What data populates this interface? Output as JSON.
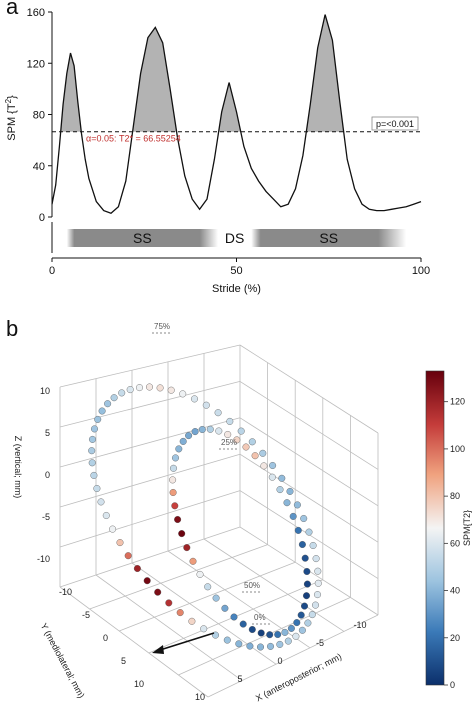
{
  "figure": {
    "panel_a_label": "a",
    "panel_b_label": "b"
  },
  "chart_data": [
    {
      "type": "line",
      "ylabel_main": "SPM {T",
      "ylabel_sup": "2",
      "ylabel_end": "}",
      "xlabel": "Stride (%)",
      "xlim": [
        0,
        100
      ],
      "ylim": [
        0,
        160
      ],
      "yticks": [
        0,
        40,
        80,
        120,
        160
      ],
      "xticks": [
        0,
        50,
        100
      ],
      "grid": false,
      "threshold": 66.55254,
      "threshold_label": "α=0.05: T2* = 66.55254",
      "p_label": "p=<0.001",
      "x": [
        0,
        1,
        2,
        3,
        4,
        5,
        6,
        7,
        8,
        9,
        10,
        12,
        14,
        16,
        18,
        20,
        22,
        24,
        26,
        28,
        30,
        32,
        34,
        36,
        38,
        40,
        42,
        44,
        46,
        48,
        50,
        52,
        54,
        56,
        58,
        60,
        62,
        64,
        66,
        68,
        70,
        72,
        74,
        76,
        78,
        80,
        82,
        84,
        86,
        88,
        90,
        92,
        94,
        96,
        98,
        100
      ],
      "y": [
        10,
        25,
        55,
        88,
        112,
        128,
        118,
        90,
        65,
        45,
        30,
        12,
        5,
        3,
        8,
        28,
        70,
        112,
        140,
        148,
        136,
        100,
        62,
        32,
        14,
        6,
        14,
        45,
        82,
        105,
        82,
        55,
        38,
        28,
        20,
        14,
        8,
        10,
        22,
        48,
        88,
        132,
        158,
        138,
        90,
        45,
        22,
        10,
        6,
        5,
        5,
        6,
        7,
        8,
        10,
        12
      ],
      "phase_bar": [
        {
          "label": "SS",
          "start": 4,
          "end": 45
        },
        {
          "label": "DS",
          "start": 45,
          "end": 54
        },
        {
          "label": "SS",
          "start": 54,
          "end": 96
        }
      ]
    },
    {
      "type": "scatter",
      "subtype": "3d-trajectory",
      "xlabel": "X (anteroposterior; mm)",
      "ylabel": "Y (mediolateral; mm)",
      "zlabel": "Z (vertical; mm)",
      "x_ticks": [
        "10",
        "5",
        "0",
        "-5",
        "-10"
      ],
      "y_ticks": [
        "-10",
        "-5",
        "0",
        "5",
        "10"
      ],
      "z_ticks": [
        "10",
        "5",
        "0",
        "-5",
        "-10"
      ],
      "annotations": [
        "75%",
        "25%",
        "50%",
        "0%"
      ],
      "colorbar": {
        "label": "SPM{T2}",
        "ticks": [
          0,
          20,
          40,
          60,
          80,
          100,
          120
        ],
        "min": 0,
        "max": 133,
        "colors": [
          "#0b2f6b",
          "#3b7ab8",
          "#9cc3df",
          "#f4f4f4",
          "#f0a27f",
          "#c43c3a",
          "#67000d"
        ]
      },
      "outer_loop_spm": [
        60,
        50,
        45,
        42,
        40,
        38,
        40,
        44,
        50,
        60,
        75,
        95,
        115,
        128,
        130,
        120,
        100,
        80,
        65,
        60,
        58,
        55,
        52,
        50,
        48,
        46,
        45,
        44,
        43,
        45,
        50,
        55,
        60,
        65,
        70,
        72,
        70,
        65,
        60,
        58,
        56,
        55,
        52,
        50,
        48,
        45,
        42,
        40,
        42,
        45,
        50,
        55,
        58,
        60,
        62,
        60,
        58,
        55,
        50,
        45
      ],
      "inner_loop_spm": [
        40,
        20,
        10,
        5,
        8,
        15,
        25,
        35,
        45,
        55,
        65,
        90,
        120,
        132,
        128,
        110,
        90,
        70,
        55,
        45,
        40,
        38,
        36,
        35,
        40,
        50,
        60,
        70,
        75,
        78,
        80,
        70,
        60,
        50,
        40,
        30,
        20,
        15,
        10,
        8,
        6,
        5,
        8,
        12,
        20,
        30
      ]
    }
  ]
}
